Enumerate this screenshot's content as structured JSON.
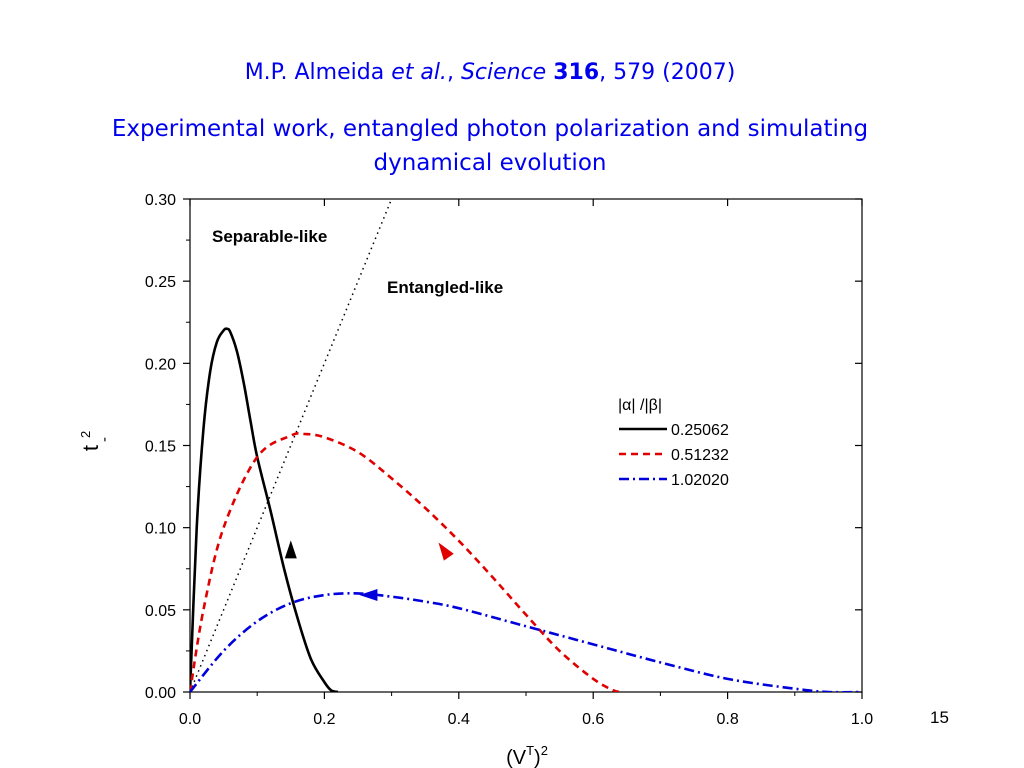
{
  "header": {
    "citation": {
      "authors": "M.P. Almeida ",
      "etal": "et al.",
      "sep": ", ",
      "journal": "Science",
      "volume": "316",
      "rest": ", 579 (2007)"
    },
    "subtitle": "Experimental work, entangled photon polarization and simulating dynamical evolution"
  },
  "page_number": "15",
  "chart_data": {
    "type": "line",
    "xlim": [
      0.0,
      1.0
    ],
    "ylim": [
      0.0,
      0.3
    ],
    "xticks": [
      "0.0",
      "0.2",
      "0.4",
      "0.6",
      "0.8",
      "1.0"
    ],
    "yticks": [
      "0.00",
      "0.05",
      "0.10",
      "0.15",
      "0.20",
      "0.25",
      "0.30"
    ],
    "xlabel": {
      "base": "(V",
      "sup1": "T",
      "close": ")",
      "sup2": "2"
    },
    "ylabel": {
      "base": "t",
      "sup": "2",
      "sub": "-"
    },
    "region_labels": [
      "Separable-like",
      "Entangled-like"
    ],
    "boundary": {
      "style": "dotted",
      "color": "#000000",
      "x": [
        0.0,
        0.3
      ],
      "y": [
        0.0,
        0.3
      ]
    },
    "legend": {
      "title": "|α| /|β|",
      "position": "right"
    },
    "series": [
      {
        "name": "0.25062",
        "style": "solid",
        "color": "#000000",
        "x": [
          0.0,
          0.01,
          0.02,
          0.03,
          0.04,
          0.05,
          0.055,
          0.06,
          0.07,
          0.08,
          0.09,
          0.1,
          0.12,
          0.14,
          0.16,
          0.18,
          0.2,
          0.21,
          0.22
        ],
        "y": [
          0.0,
          0.1,
          0.16,
          0.195,
          0.213,
          0.22,
          0.221,
          0.219,
          0.207,
          0.188,
          0.165,
          0.143,
          0.11,
          0.075,
          0.045,
          0.02,
          0.006,
          0.001,
          0.0
        ]
      },
      {
        "name": "0.51232",
        "style": "dashed",
        "color": "#e00000",
        "x": [
          0.0,
          0.02,
          0.05,
          0.1,
          0.15,
          0.17,
          0.2,
          0.25,
          0.3,
          0.35,
          0.4,
          0.45,
          0.5,
          0.55,
          0.6,
          0.63,
          0.64
        ],
        "y": [
          0.0,
          0.05,
          0.1,
          0.143,
          0.156,
          0.157,
          0.155,
          0.146,
          0.13,
          0.112,
          0.092,
          0.07,
          0.047,
          0.025,
          0.008,
          0.001,
          0.0
        ]
      },
      {
        "name": "1.02020",
        "style": "dashdot",
        "color": "#0000dd",
        "x": [
          0.0,
          0.05,
          0.1,
          0.15,
          0.2,
          0.25,
          0.3,
          0.35,
          0.4,
          0.5,
          0.6,
          0.7,
          0.8,
          0.9,
          0.95,
          1.0
        ],
        "y": [
          0.0,
          0.025,
          0.043,
          0.054,
          0.059,
          0.06,
          0.058,
          0.055,
          0.051,
          0.04,
          0.029,
          0.018,
          0.008,
          0.002,
          0.0,
          0.0
        ]
      }
    ],
    "arrows": [
      {
        "series": "0.25062",
        "x": 0.15,
        "y": 0.085,
        "direction": "up"
      },
      {
        "series": "0.51232",
        "x": 0.38,
        "y": 0.085,
        "direction": "up-left"
      },
      {
        "series": "1.02020",
        "x": 0.27,
        "y": 0.059,
        "direction": "left"
      }
    ]
  }
}
